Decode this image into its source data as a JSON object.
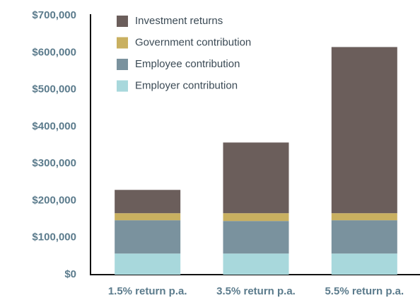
{
  "chart_data": {
    "type": "stacked_bar",
    "categories": [
      "1.5% return p.a.",
      "3.5% return p.a.",
      "5.5% return p.a."
    ],
    "series": [
      {
        "name": "Employer contribution",
        "color": "#a8d8dc",
        "values": [
          57000,
          57000,
          57000
        ]
      },
      {
        "name": "Employee contribution",
        "color": "#7a929e",
        "values": [
          90000,
          88000,
          90000
        ]
      },
      {
        "name": "Government contribution",
        "color": "#c9b060",
        "values": [
          19000,
          21000,
          19000
        ]
      },
      {
        "name": "Investment returns",
        "color": "#6b5e5b",
        "values": [
          63000,
          191000,
          449000
        ]
      }
    ],
    "ylim": [
      0,
      700000
    ],
    "yticks": [
      {
        "value": 0,
        "label": "$0"
      },
      {
        "value": 100000,
        "label": "$100,000"
      },
      {
        "value": 200000,
        "label": "$200,000"
      },
      {
        "value": 300000,
        "label": "$300,000"
      },
      {
        "value": 400000,
        "label": "$400,000"
      },
      {
        "value": 500000,
        "label": "$500,000"
      },
      {
        "value": 600000,
        "label": "$600,000"
      },
      {
        "value": 700000,
        "label": "$700,000"
      }
    ],
    "grid": false,
    "legend": "top-left"
  }
}
